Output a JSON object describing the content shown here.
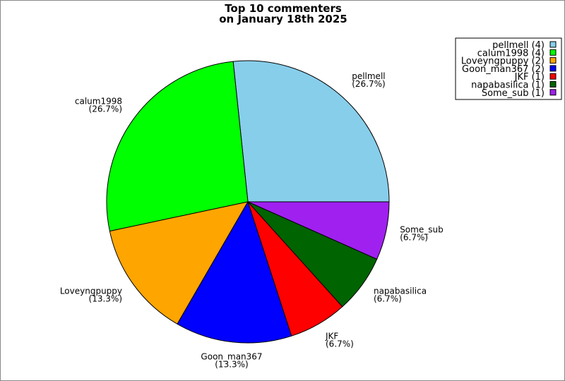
{
  "chart_data": {
    "type": "pie",
    "title": [
      "Top 10 commenters",
      "on January 18th 2025"
    ],
    "start_angle_deg": 0,
    "direction": "counterclockwise",
    "legend_position": "top-right",
    "slices": [
      {
        "name": "pellmell",
        "count": 4,
        "percent": "26.7%",
        "color": "#87CEEB",
        "legend": "pellmell (4)"
      },
      {
        "name": "calum1998",
        "count": 4,
        "percent": "26.7%",
        "color": "#00FF00",
        "legend": "calum1998 (4)"
      },
      {
        "name": "Loveyngpuppy",
        "count": 2,
        "percent": "13.3%",
        "color": "#FFA500",
        "legend": "Loveyngpuppy (2)"
      },
      {
        "name": "Goon_man367",
        "count": 2,
        "percent": "13.3%",
        "color": "#0000FF",
        "legend": "Goon_man367 (2)"
      },
      {
        "name": "JKF",
        "count": 1,
        "percent": "6.7%",
        "color": "#FF0000",
        "legend": "JKF (1)"
      },
      {
        "name": "napabasilica",
        "count": 1,
        "percent": "6.7%",
        "color": "#006400",
        "legend": "napabasilica (1)"
      },
      {
        "name": "Some_sub",
        "count": 1,
        "percent": "6.7%",
        "color": "#A020F0",
        "legend": "Some_sub (1)"
      }
    ]
  }
}
